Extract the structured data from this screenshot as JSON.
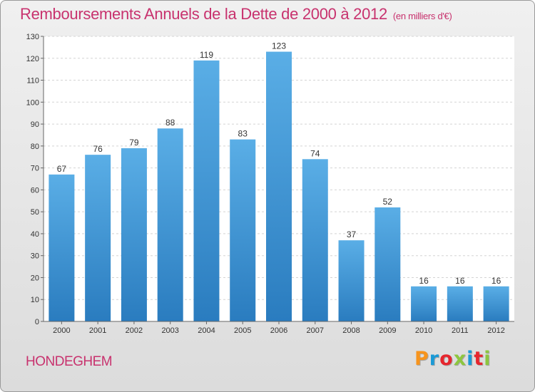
{
  "header": {
    "title": "Remboursements Annuels de la Dette de 2000 à 2012",
    "unit": "(en milliers d'€)"
  },
  "footer": {
    "town": "HONDEGHEM",
    "logo_letters": [
      "P",
      "r",
      "o",
      "x",
      "i",
      "t",
      "i"
    ],
    "logo_colors": [
      "#f7941d",
      "#1a9ad6",
      "#e6262e",
      "#8dc63f",
      "#1a9ad6",
      "#e6262e",
      "#8dc63f"
    ]
  },
  "colors": {
    "bar_top": "#5aaee6",
    "bar_bottom": "#2a7cbf",
    "accent": "#c8326e"
  },
  "chart_data": {
    "type": "bar",
    "categories": [
      "2000",
      "2001",
      "2002",
      "2003",
      "2004",
      "2005",
      "2006",
      "2007",
      "2008",
      "2009",
      "2010",
      "2011",
      "2012"
    ],
    "values": [
      67,
      76,
      79,
      88,
      119,
      83,
      123,
      74,
      37,
      52,
      16,
      16,
      16
    ],
    "yticks": [
      0,
      10,
      20,
      30,
      40,
      50,
      60,
      70,
      80,
      90,
      100,
      110,
      120,
      130
    ],
    "ylim": [
      0,
      130
    ],
    "grid": true,
    "legend": "none"
  }
}
